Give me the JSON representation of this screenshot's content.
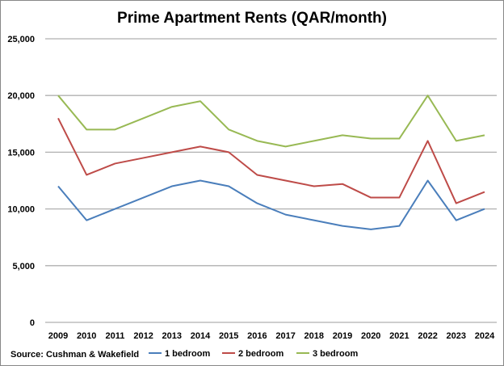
{
  "chart_data": {
    "type": "line",
    "title": "Prime Apartment Rents (QAR/month)",
    "source": "Source: Cushman & Wakefield",
    "xlabel": "",
    "ylabel": "",
    "ylim": [
      0,
      25000
    ],
    "yticks": [
      "0",
      "5,000",
      "10,000",
      "15,000",
      "20,000",
      "25,000"
    ],
    "grid": true,
    "legend_position": "bottom",
    "categories": [
      "2009",
      "2010",
      "2011",
      "2012",
      "2013",
      "2014",
      "2015",
      "2016",
      "2017",
      "2018",
      "2019",
      "2020",
      "2021",
      "2022",
      "2023",
      "2024"
    ],
    "series": [
      {
        "name": "1 bedroom",
        "color": "#4a7ebb",
        "values": [
          12000,
          9000,
          10000,
          11000,
          12000,
          12500,
          12000,
          10500,
          9500,
          9000,
          8500,
          8200,
          8500,
          12500,
          9000,
          10000
        ]
      },
      {
        "name": "2 bedroom",
        "color": "#be4b48",
        "values": [
          18000,
          13000,
          14000,
          14500,
          15000,
          15500,
          15000,
          13000,
          12500,
          12000,
          12200,
          11000,
          11000,
          16000,
          10500,
          11500
        ]
      },
      {
        "name": "3 bedroom",
        "color": "#98b954",
        "values": [
          20000,
          17000,
          17000,
          18000,
          19000,
          19500,
          17000,
          16000,
          15500,
          16000,
          16500,
          16200,
          16200,
          20000,
          16000,
          16500
        ]
      }
    ]
  }
}
